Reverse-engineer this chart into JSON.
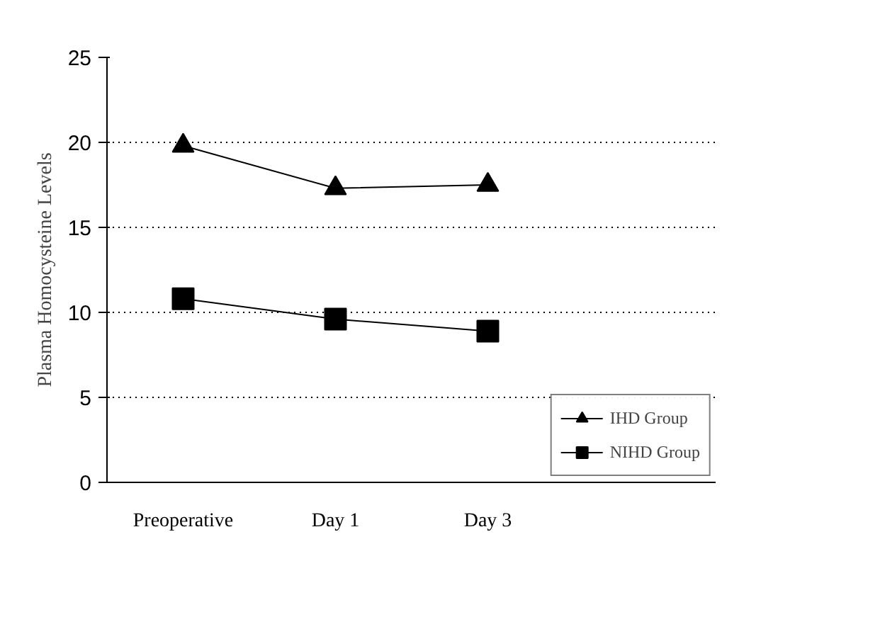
{
  "chart_data": {
    "type": "line",
    "ylabel": "Plasma Homocysteine Levels",
    "categories": [
      "Preoperative",
      "Day 1",
      "Day 3",
      null
    ],
    "series": [
      {
        "name": "IHD Group",
        "color": "#000000",
        "marker": "triangle",
        "values": [
          19.8,
          17.3,
          17.5,
          null
        ]
      },
      {
        "name": "NIHD Group",
        "color": "#000000",
        "marker": "square",
        "values": [
          10.8,
          9.6,
          8.9,
          null
        ]
      }
    ],
    "ylim": [
      0,
      25
    ],
    "yticks": [
      0,
      5,
      10,
      15,
      20,
      25
    ],
    "grid": "y",
    "legend": "bottom right",
    "line_style": "solid"
  }
}
